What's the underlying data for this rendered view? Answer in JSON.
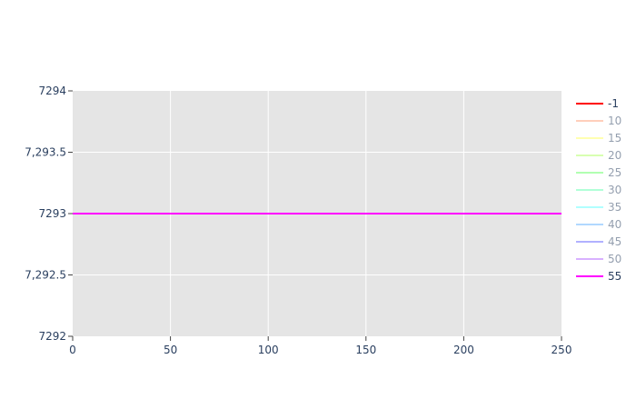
{
  "chart_data": {
    "type": "line",
    "title": "",
    "xlabel": "",
    "ylabel": "",
    "xlim": [
      0,
      250
    ],
    "ylim": [
      7292,
      7294
    ],
    "x_ticks": [
      {
        "value": 0,
        "label": "0"
      },
      {
        "value": 50,
        "label": "50"
      },
      {
        "value": 100,
        "label": "100"
      },
      {
        "value": 150,
        "label": "150"
      },
      {
        "value": 200,
        "label": "200"
      },
      {
        "value": 250,
        "label": "250"
      }
    ],
    "y_ticks": [
      {
        "value": 7292,
        "label": "7292"
      },
      {
        "value": 7292.5,
        "label": "7,292.5"
      },
      {
        "value": 7293,
        "label": "7293"
      },
      {
        "value": 7293.5,
        "label": "7,293.5"
      },
      {
        "value": 7294,
        "label": "7294"
      }
    ],
    "grid": true,
    "legend_position": "right",
    "plot_background": "#e5e5e5",
    "series": [
      {
        "name": "-1",
        "color": "#ff0000",
        "visible": true,
        "x": [
          0,
          250
        ],
        "y": [
          7293,
          7293
        ]
      },
      {
        "name": "10",
        "color": "#ffa07a",
        "visible": false,
        "x": [
          0,
          250
        ],
        "y": [
          7293,
          7293
        ]
      },
      {
        "name": "15",
        "color": "#ffff66",
        "visible": false,
        "x": [
          0,
          250
        ],
        "y": [
          7293,
          7293
        ]
      },
      {
        "name": "20",
        "color": "#b3ff66",
        "visible": false,
        "x": [
          0,
          250
        ],
        "y": [
          7293,
          7293
        ]
      },
      {
        "name": "25",
        "color": "#66ff66",
        "visible": false,
        "x": [
          0,
          250
        ],
        "y": [
          7293,
          7293
        ]
      },
      {
        "name": "30",
        "color": "#66ffb3",
        "visible": false,
        "x": [
          0,
          250
        ],
        "y": [
          7293,
          7293
        ]
      },
      {
        "name": "35",
        "color": "#66ffff",
        "visible": false,
        "x": [
          0,
          250
        ],
        "y": [
          7293,
          7293
        ]
      },
      {
        "name": "40",
        "color": "#66b3ff",
        "visible": false,
        "x": [
          0,
          250
        ],
        "y": [
          7293,
          7293
        ]
      },
      {
        "name": "45",
        "color": "#6666ff",
        "visible": false,
        "x": [
          0,
          250
        ],
        "y": [
          7293,
          7293
        ]
      },
      {
        "name": "50",
        "color": "#b366ff",
        "visible": false,
        "x": [
          0,
          250
        ],
        "y": [
          7293,
          7293
        ]
      },
      {
        "name": "55",
        "color": "#ff00ff",
        "visible": true,
        "x": [
          0,
          250
        ],
        "y": [
          7293,
          7293
        ]
      }
    ]
  }
}
